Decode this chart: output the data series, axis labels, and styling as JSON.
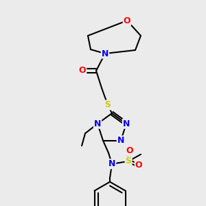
{
  "background_color": "#ebebeb",
  "bond_color": "#000000",
  "atom_colors": {
    "N": "#0000ee",
    "O": "#ff0000",
    "S": "#cccc00",
    "C": "#000000"
  },
  "figsize": [
    3.0,
    3.0
  ],
  "dpi": 100
}
